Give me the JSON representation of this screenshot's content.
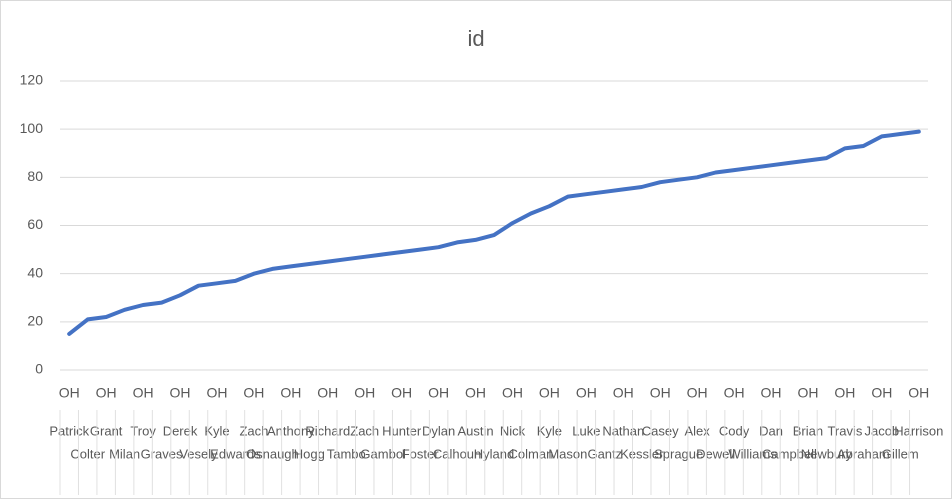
{
  "chart_data": {
    "type": "line",
    "title": "id",
    "categories": [
      "Patrick",
      "Colter",
      "Grant",
      "Milan",
      "Troy",
      "Graves",
      "Derek",
      "Vesely",
      "Kyle",
      "Edwards",
      "Zach",
      "Osnaugh",
      "Anthony",
      "Hogg",
      "Richard",
      "Tambo",
      "Zach",
      "Gambol",
      "Hunter",
      "Foster",
      "Dylan",
      "Calhoun",
      "Austin",
      "Hyland",
      "Nick",
      "Colman",
      "Kyle",
      "Mason",
      "Luke",
      "Gantz",
      "Nathan",
      "Kessler",
      "Casey",
      "Sprague",
      "Alex",
      "Dewell",
      "Cody",
      "Williams",
      "Dan",
      "Campbell",
      "Brian",
      "Newbury",
      "Travis",
      "Abraham",
      "Jacob",
      "Gillem",
      "Harrison"
    ],
    "group_labels": [
      "OH",
      "OH",
      "OH",
      "OH",
      "OH",
      "OH",
      "OH",
      "OH",
      "OH",
      "OH",
      "OH",
      "OH",
      "OH",
      "OH",
      "OH",
      "OH",
      "OH",
      "OH",
      "OH",
      "OH",
      "OH",
      "OH",
      "OH",
      "OH"
    ],
    "series": [
      {
        "name": "id",
        "color": "#4472c4",
        "values": [
          15,
          21,
          22,
          25,
          27,
          28,
          31,
          35,
          36,
          37,
          40,
          42,
          43,
          44,
          45,
          46,
          47,
          48,
          49,
          50,
          51,
          53,
          54,
          56,
          61,
          65,
          68,
          72,
          73,
          74,
          75,
          76,
          78,
          79,
          80,
          82,
          83,
          84,
          85,
          86,
          87,
          88,
          92,
          93,
          97,
          98,
          99
        ]
      }
    ],
    "ylim": [
      0,
      120
    ],
    "yticks": [
      0,
      20,
      40,
      60,
      80,
      100,
      120
    ],
    "grid": true
  }
}
